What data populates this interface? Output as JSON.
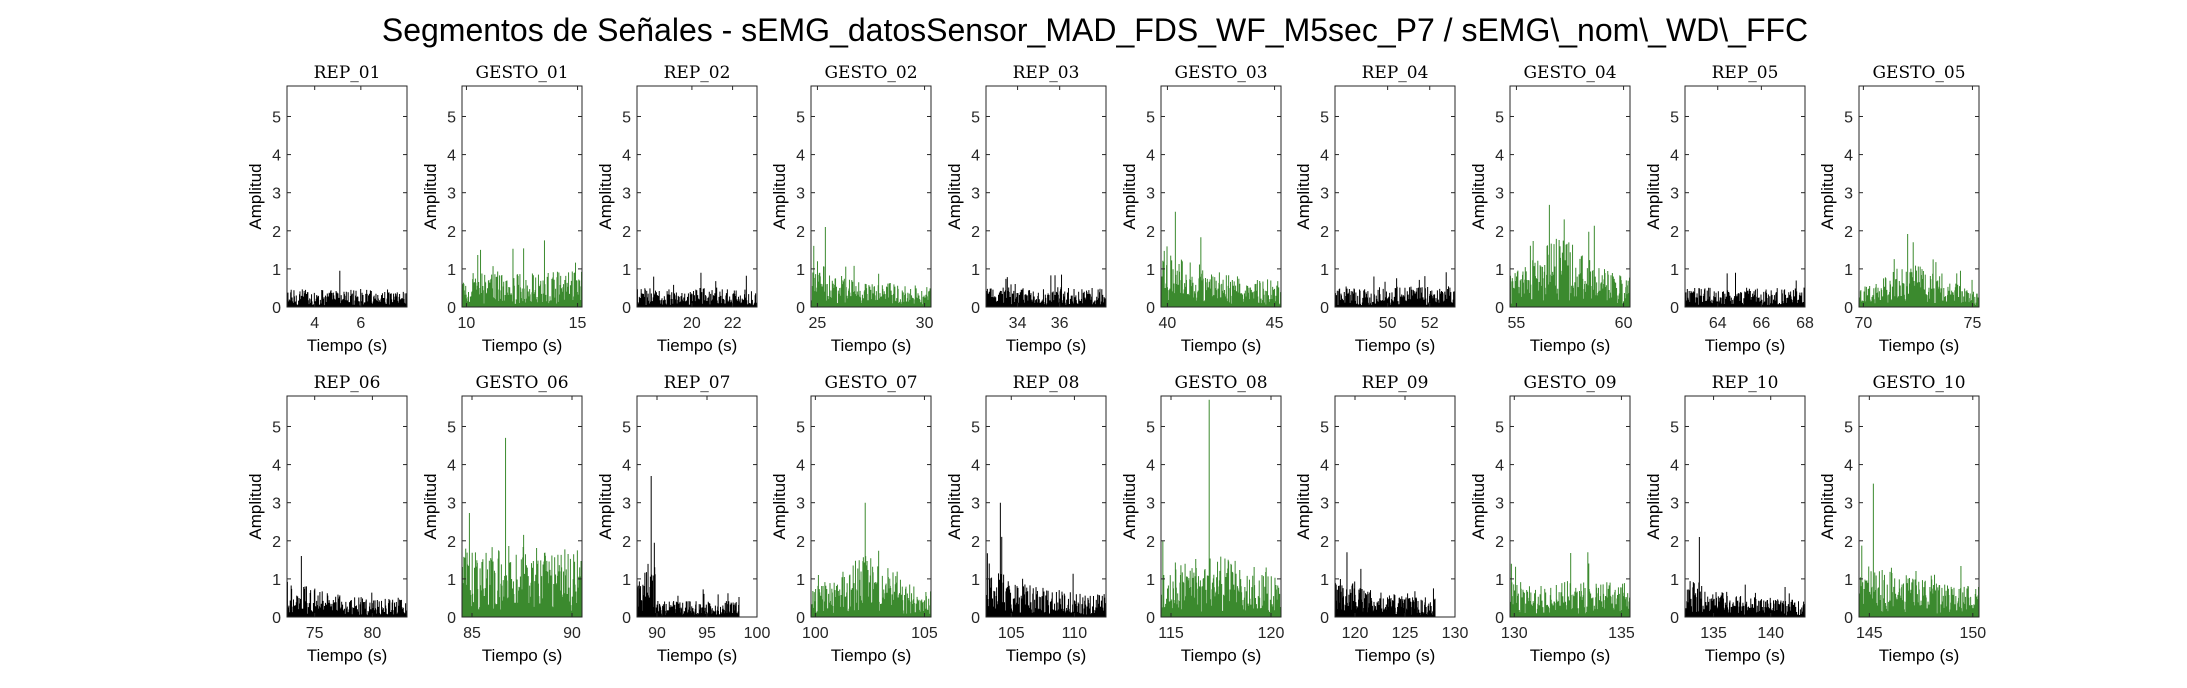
{
  "figure": {
    "title": "Segmentos de Señales - sEMG_datosSensor_MAD_FDS_WF_M5sec_P7 / sEMG\\_nom\\_WD\\_FFC"
  },
  "colors": {
    "rep": "#000000",
    "gesto": "#3b8a2e",
    "axis": "#262626"
  },
  "chart_data": [
    {
      "type": "area",
      "title": "REP_01",
      "xlabel": "Tiempo (s)",
      "ylabel": "Amplitud",
      "ylim": [
        0,
        5.8
      ],
      "yticks": [
        0,
        1,
        2,
        3,
        4,
        5
      ],
      "xlim": [
        2.8,
        8.0
      ],
      "xticks": [
        4,
        6
      ],
      "x_range": [
        2.8,
        8.0
      ],
      "signal": {
        "kind": "rep",
        "base": 0.28,
        "peak": 0.95,
        "trend": "flat"
      }
    },
    {
      "type": "area",
      "title": "GESTO_01",
      "xlabel": "Tiempo (s)",
      "ylabel": "Amplitud",
      "ylim": [
        0,
        5.8
      ],
      "yticks": [
        0,
        1,
        2,
        3,
        4,
        5
      ],
      "xlim": [
        9.8,
        15.2
      ],
      "xticks": [
        10,
        15
      ],
      "x_range": [
        9.8,
        15.2
      ],
      "signal": {
        "kind": "gesto",
        "base": 0.55,
        "peak": 1.75,
        "trend": "flat"
      }
    },
    {
      "type": "area",
      "title": "REP_02",
      "xlabel": "Tiempo (s)",
      "ylabel": "Amplitud",
      "ylim": [
        0,
        5.8
      ],
      "yticks": [
        0,
        1,
        2,
        3,
        4,
        5
      ],
      "xlim": [
        17.3,
        23.2
      ],
      "xticks": [
        20,
        22
      ],
      "x_range": [
        17.3,
        23.2
      ],
      "signal": {
        "kind": "rep",
        "base": 0.3,
        "peak": 0.9,
        "trend": "flat"
      }
    },
    {
      "type": "area",
      "title": "GESTO_02",
      "xlabel": "Tiempo (s)",
      "ylabel": "Amplitud",
      "ylim": [
        0,
        5.8
      ],
      "yticks": [
        0,
        1,
        2,
        3,
        4,
        5
      ],
      "xlim": [
        24.7,
        30.3
      ],
      "xticks": [
        25,
        30
      ],
      "x_range": [
        24.7,
        30.3
      ],
      "signal": {
        "kind": "gesto",
        "base": 0.55,
        "peak": 2.1,
        "trend": "early"
      }
    },
    {
      "type": "area",
      "title": "REP_03",
      "xlabel": "Tiempo (s)",
      "ylabel": "Amplitud",
      "ylim": [
        0,
        5.8
      ],
      "yticks": [
        0,
        1,
        2,
        3,
        4,
        5
      ],
      "xlim": [
        32.5,
        38.2
      ],
      "xticks": [
        34,
        36
      ],
      "x_range": [
        32.5,
        38.2
      ],
      "signal": {
        "kind": "rep",
        "base": 0.32,
        "peak": 0.85,
        "trend": "flat"
      }
    },
    {
      "type": "area",
      "title": "GESTO_03",
      "xlabel": "Tiempo (s)",
      "ylabel": "Amplitud",
      "ylim": [
        0,
        5.8
      ],
      "yticks": [
        0,
        1,
        2,
        3,
        4,
        5
      ],
      "xlim": [
        39.7,
        45.3
      ],
      "xticks": [
        40,
        45
      ],
      "x_range": [
        39.7,
        45.3
      ],
      "signal": {
        "kind": "gesto",
        "base": 0.7,
        "peak": 2.5,
        "trend": "early"
      }
    },
    {
      "type": "area",
      "title": "REP_04",
      "xlabel": "Tiempo (s)",
      "ylabel": "Amplitud",
      "ylim": [
        0,
        5.8
      ],
      "yticks": [
        0,
        1,
        2,
        3,
        4,
        5
      ],
      "xlim": [
        47.5,
        53.2
      ],
      "xticks": [
        50,
        52
      ],
      "x_range": [
        47.5,
        53.2
      ],
      "signal": {
        "kind": "rep",
        "base": 0.32,
        "peak": 0.8,
        "trend": "flat"
      }
    },
    {
      "type": "area",
      "title": "GESTO_04",
      "xlabel": "Tiempo (s)",
      "ylabel": "Amplitud",
      "ylim": [
        0,
        5.8
      ],
      "yticks": [
        0,
        1,
        2,
        3,
        4,
        5
      ],
      "xlim": [
        54.7,
        60.3
      ],
      "xticks": [
        55,
        60
      ],
      "x_range": [
        54.7,
        60.3
      ],
      "signal": {
        "kind": "gesto",
        "base": 0.8,
        "peak": 2.3,
        "trend": "middle"
      }
    },
    {
      "type": "area",
      "title": "REP_05",
      "xlabel": "Tiempo (s)",
      "ylabel": "Amplitud",
      "ylim": [
        0,
        5.8
      ],
      "yticks": [
        0,
        1,
        2,
        3,
        4,
        5
      ],
      "xlim": [
        62.5,
        68.0
      ],
      "xticks": [
        64,
        66,
        68
      ],
      "x_range": [
        62.5,
        68.0
      ],
      "signal": {
        "kind": "rep",
        "base": 0.3,
        "peak": 0.9,
        "trend": "flat"
      }
    },
    {
      "type": "area",
      "title": "GESTO_05",
      "xlabel": "Tiempo (s)",
      "ylabel": "Amplitud",
      "ylim": [
        0,
        5.8
      ],
      "yticks": [
        0,
        1,
        2,
        3,
        4,
        5
      ],
      "xlim": [
        69.8,
        75.3
      ],
      "xticks": [
        70,
        75
      ],
      "x_range": [
        69.8,
        75.3
      ],
      "signal": {
        "kind": "gesto",
        "base": 0.5,
        "peak": 1.7,
        "trend": "middle"
      }
    },
    {
      "type": "area",
      "title": "REP_06",
      "xlabel": "Tiempo (s)",
      "ylabel": "Amplitud",
      "ylim": [
        0,
        5.8
      ],
      "yticks": [
        0,
        1,
        2,
        3,
        4,
        5
      ],
      "xlim": [
        72.6,
        83.0
      ],
      "xticks": [
        75,
        80
      ],
      "x_range": [
        72.6,
        83.0
      ],
      "signal": {
        "kind": "rep",
        "base": 0.45,
        "peak": 1.6,
        "trend": "early"
      }
    },
    {
      "type": "area",
      "title": "GESTO_06",
      "xlabel": "Tiempo (s)",
      "ylabel": "Amplitud",
      "ylim": [
        0,
        5.8
      ],
      "yticks": [
        0,
        1,
        2,
        3,
        4,
        5
      ],
      "xlim": [
        84.5,
        90.5
      ],
      "xticks": [
        85,
        90
      ],
      "x_range": [
        84.5,
        90.5
      ],
      "signal": {
        "kind": "gesto",
        "base": 1.1,
        "peak": 4.7,
        "trend": "flat"
      }
    },
    {
      "type": "area",
      "title": "REP_07",
      "xlabel": "Tiempo (s)",
      "ylabel": "Amplitud",
      "ylim": [
        0,
        5.8
      ],
      "yticks": [
        0,
        1,
        2,
        3,
        4,
        5
      ],
      "xlim": [
        88.0,
        100.0
      ],
      "xticks": [
        90,
        95,
        100
      ],
      "x_range": [
        88.0,
        98.2
      ],
      "signal": {
        "kind": "rep",
        "base": 0.45,
        "peak": 3.7,
        "trend": "early_burst"
      }
    },
    {
      "type": "area",
      "title": "GESTO_07",
      "xlabel": "Tiempo (s)",
      "ylabel": "Amplitud",
      "ylim": [
        0,
        5.8
      ],
      "yticks": [
        0,
        1,
        2,
        3,
        4,
        5
      ],
      "xlim": [
        99.8,
        105.3
      ],
      "xticks": [
        100,
        105
      ],
      "x_range": [
        99.8,
        105.3
      ],
      "signal": {
        "kind": "gesto",
        "base": 0.7,
        "peak": 3.0,
        "trend": "middle"
      }
    },
    {
      "type": "area",
      "title": "REP_08",
      "xlabel": "Tiempo (s)",
      "ylabel": "Amplitud",
      "ylim": [
        0,
        5.8
      ],
      "yticks": [
        0,
        1,
        2,
        3,
        4,
        5
      ],
      "xlim": [
        103.0,
        112.5
      ],
      "xticks": [
        105,
        110
      ],
      "x_range": [
        103.0,
        112.5
      ],
      "signal": {
        "kind": "rep",
        "base": 0.6,
        "peak": 3.0,
        "trend": "early"
      }
    },
    {
      "type": "area",
      "title": "GESTO_08",
      "xlabel": "Tiempo (s)",
      "ylabel": "Amplitud",
      "ylim": [
        0,
        5.8
      ],
      "yticks": [
        0,
        1,
        2,
        3,
        4,
        5
      ],
      "xlim": [
        114.5,
        120.5
      ],
      "xticks": [
        115,
        120
      ],
      "x_range": [
        114.5,
        120.5
      ],
      "signal": {
        "kind": "gesto",
        "base": 0.9,
        "peak": 5.7,
        "trend": "spike"
      }
    },
    {
      "type": "area",
      "title": "REP_09",
      "xlabel": "Tiempo (s)",
      "ylabel": "Amplitud",
      "ylim": [
        0,
        5.8
      ],
      "yticks": [
        0,
        1,
        2,
        3,
        4,
        5
      ],
      "xlim": [
        118.0,
        130.0
      ],
      "xticks": [
        120,
        125,
        130
      ],
      "x_range": [
        118.0,
        128.0
      ],
      "signal": {
        "kind": "rep",
        "base": 0.5,
        "peak": 1.7,
        "trend": "early"
      }
    },
    {
      "type": "area",
      "title": "GESTO_09",
      "xlabel": "Tiempo (s)",
      "ylabel": "Amplitud",
      "ylim": [
        0,
        5.8
      ],
      "yticks": [
        0,
        1,
        2,
        3,
        4,
        5
      ],
      "xlim": [
        129.8,
        135.4
      ],
      "xticks": [
        130,
        135
      ],
      "x_range": [
        129.8,
        135.4
      ],
      "signal": {
        "kind": "gesto",
        "base": 0.55,
        "peak": 1.7,
        "trend": "flat"
      }
    },
    {
      "type": "area",
      "title": "REP_10",
      "xlabel": "Tiempo (s)",
      "ylabel": "Amplitud",
      "ylim": [
        0,
        5.8
      ],
      "yticks": [
        0,
        1,
        2,
        3,
        4,
        5
      ],
      "xlim": [
        132.5,
        143.0
      ],
      "xticks": [
        135,
        140
      ],
      "x_range": [
        132.5,
        143.0
      ],
      "signal": {
        "kind": "rep",
        "base": 0.45,
        "peak": 2.1,
        "trend": "early"
      }
    },
    {
      "type": "area",
      "title": "GESTO_10",
      "xlabel": "Tiempo (s)",
      "ylabel": "Amplitud",
      "ylim": [
        0,
        5.8
      ],
      "yticks": [
        0,
        1,
        2,
        3,
        4,
        5
      ],
      "xlim": [
        144.5,
        150.3
      ],
      "xticks": [
        145,
        150
      ],
      "x_range": [
        144.5,
        150.3
      ],
      "signal": {
        "kind": "gesto",
        "base": 0.8,
        "peak": 3.5,
        "trend": "early"
      }
    }
  ]
}
